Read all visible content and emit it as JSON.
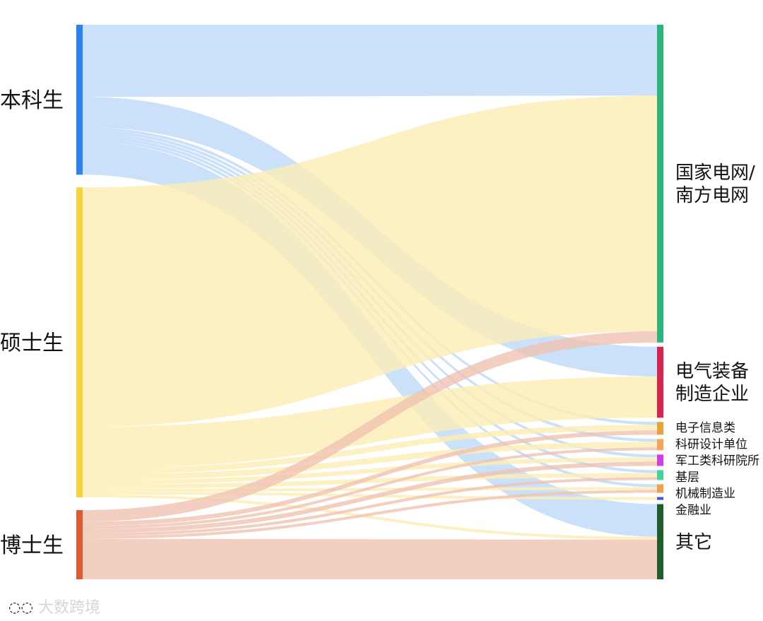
{
  "chart_data": {
    "type": "sankey",
    "sources": [
      {
        "name": "本科生",
        "color": "#2f80f0",
        "flow_color": "#bcd8f8"
      },
      {
        "name": "硕士生",
        "color": "#f7d23c",
        "flow_color": "#fcedb4"
      },
      {
        "name": "博士生",
        "color": "#de5a35",
        "flow_color": "#f0c2b0"
      }
    ],
    "targets": [
      {
        "name": "国家电网/\n南方电网",
        "color": "#2cb57a",
        "size": "big"
      },
      {
        "name": "电气装备\n制造企业",
        "color": "#d6264f",
        "size": "big"
      },
      {
        "name": "电子信息类",
        "color": "#e8a23c",
        "size": "small"
      },
      {
        "name": "科研设计单位",
        "color": "#f2a65a",
        "size": "small"
      },
      {
        "name": "军工类科研院所",
        "color": "#d23ee6",
        "size": "small"
      },
      {
        "name": "基层",
        "color": "#44d19a",
        "size": "small"
      },
      {
        "name": "机械制造业",
        "color": "#f3a04e",
        "size": "small"
      },
      {
        "name": "金融业",
        "color": "#3f56d9",
        "size": "small"
      },
      {
        "name": "其它",
        "color": "#1f5e2a",
        "size": "big"
      }
    ],
    "flows": [
      {
        "source": "本科生",
        "target": "国家电网/\n南方电网",
        "value": 50
      },
      {
        "source": "本科生",
        "target": "电气装备\n制造企业",
        "value": 21
      },
      {
        "source": "本科生",
        "target": "电子信息类",
        "value": 2
      },
      {
        "source": "本科生",
        "target": "科研设计单位",
        "value": 2
      },
      {
        "source": "本科生",
        "target": "军工类科研院所",
        "value": 2
      },
      {
        "source": "本科生",
        "target": "基层",
        "value": 2
      },
      {
        "source": "本科生",
        "target": "机械制造业",
        "value": 2
      },
      {
        "source": "本科生",
        "target": "其它",
        "value": 23
      },
      {
        "source": "硕士生",
        "target": "国家电网/\n南方电网",
        "value": 166
      },
      {
        "source": "硕士生",
        "target": "电气装备\n制造企业",
        "value": 29
      },
      {
        "source": "硕士生",
        "target": "电子信息类",
        "value": 4
      },
      {
        "source": "硕士生",
        "target": "科研设计单位",
        "value": 4
      },
      {
        "source": "硕士生",
        "target": "军工类科研院所",
        "value": 3
      },
      {
        "source": "硕士生",
        "target": "基层",
        "value": 3
      },
      {
        "source": "硕士生",
        "target": "机械制造业",
        "value": 2
      },
      {
        "source": "硕士生",
        "target": "金融业",
        "value": 2
      },
      {
        "source": "硕士生",
        "target": "其它",
        "value": 2
      },
      {
        "source": "博士生",
        "target": "国家电网/\n南方电网",
        "value": 8
      },
      {
        "source": "博士生",
        "target": "电子信息类",
        "value": 3
      },
      {
        "source": "博士生",
        "target": "科研设计单位",
        "value": 2
      },
      {
        "source": "博士生",
        "target": "军工类科研院所",
        "value": 3
      },
      {
        "source": "博士生",
        "target": "基层",
        "value": 2
      },
      {
        "source": "博士生",
        "target": "机械制造业",
        "value": 2
      },
      {
        "source": "博士生",
        "target": "其它",
        "value": 28
      }
    ]
  },
  "watermark": "大数跨境"
}
